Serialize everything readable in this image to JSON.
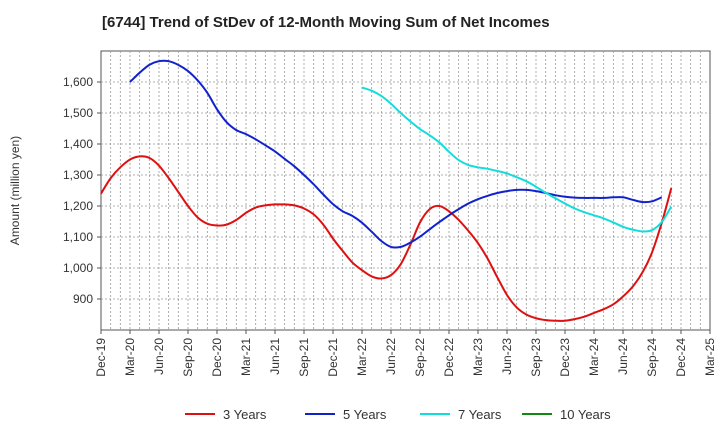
{
  "chart_data": {
    "type": "line",
    "title": "[6744]  Trend of StDev of 12-Month Moving Sum of Net Incomes",
    "ylabel": "Amount (million yen)",
    "xlabel": "",
    "ylim": [
      800,
      1700
    ],
    "yticks": [
      900,
      1000,
      1100,
      1200,
      1300,
      1400,
      1500,
      1600
    ],
    "ytick_labels": [
      "900",
      "1,000",
      "1,100",
      "1,200",
      "1,300",
      "1,400",
      "1,500",
      "1,600"
    ],
    "xticks": [
      "Dec-19",
      "Mar-20",
      "Jun-20",
      "Sep-20",
      "Dec-20",
      "Mar-21",
      "Jun-21",
      "Sep-21",
      "Dec-21",
      "Mar-22",
      "Jun-22",
      "Sep-22",
      "Dec-22",
      "Mar-23",
      "Jun-23",
      "Sep-23",
      "Dec-23",
      "Mar-24",
      "Jun-24",
      "Sep-24",
      "Dec-24",
      "Mar-25"
    ],
    "grid": true,
    "legend_position": "bottom",
    "series": [
      {
        "name": "3 Years",
        "color": "#dd1111",
        "start": "Dec-19",
        "values": [
          1240,
          1290,
          1325,
          1350,
          1360,
          1355,
          1330,
          1290,
          1245,
          1200,
          1163,
          1143,
          1137,
          1140,
          1155,
          1178,
          1195,
          1202,
          1205,
          1205,
          1202,
          1192,
          1173,
          1140,
          1095,
          1055,
          1018,
          993,
          973,
          966,
          977,
          1012,
          1075,
          1147,
          1190,
          1200,
          1183,
          1155,
          1120,
          1080,
          1030,
          970,
          913,
          873,
          850,
          838,
          832,
          830,
          830,
          835,
          843,
          855,
          867,
          883,
          908,
          940,
          985,
          1050,
          1145,
          1258
        ]
      },
      {
        "name": "5 Years",
        "color": "#1122cc",
        "start": "Mar-20",
        "values": [
          1600,
          1630,
          1655,
          1667,
          1667,
          1655,
          1635,
          1605,
          1565,
          1512,
          1470,
          1445,
          1432,
          1415,
          1396,
          1376,
          1352,
          1328,
          1300,
          1270,
          1237,
          1206,
          1183,
          1168,
          1146,
          1117,
          1087,
          1068,
          1068,
          1082,
          1101,
          1125,
          1148,
          1170,
          1190,
          1208,
          1222,
          1233,
          1242,
          1248,
          1252,
          1252,
          1248,
          1242,
          1235,
          1230,
          1227,
          1226,
          1226,
          1226,
          1228,
          1228,
          1220,
          1213,
          1215,
          1228
        ]
      },
      {
        "name": "7 Years",
        "color": "#11dddd",
        "start": "Mar-22",
        "values": [
          1582,
          1572,
          1555,
          1530,
          1500,
          1473,
          1448,
          1428,
          1405,
          1375,
          1348,
          1332,
          1325,
          1320,
          1313,
          1305,
          1293,
          1280,
          1262,
          1243,
          1225,
          1208,
          1192,
          1180,
          1170,
          1160,
          1147,
          1133,
          1124,
          1118,
          1122,
          1148,
          1198
        ]
      },
      {
        "name": "10 Years",
        "color": "#118811",
        "start": "Dec-19",
        "values": []
      }
    ]
  }
}
